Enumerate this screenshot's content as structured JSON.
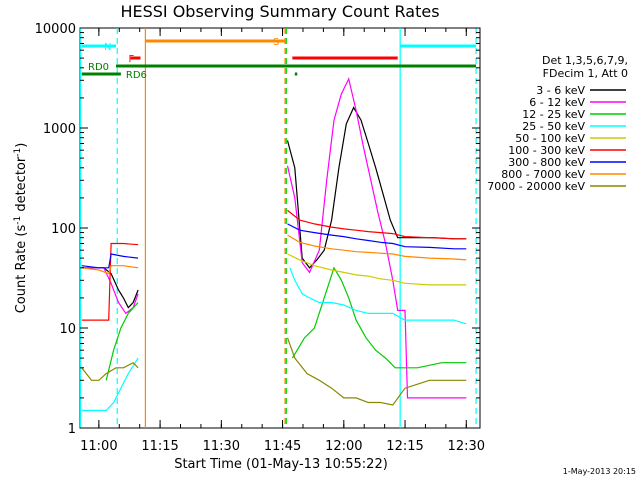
{
  "chart_data": {
    "type": "line",
    "title": "HESSI Observing Summary Count Rates",
    "xlabel": "Start Time (01-May-13 10:55:22)",
    "ylabel": "Count Rate (s",
    "ylabel_sup": "-1",
    "ylabel_mid": " detector",
    "ylabel_end": ")",
    "y_scale": "log",
    "ylim": [
      1,
      10000
    ],
    "xlim": [
      10.923,
      12.556
    ],
    "x_ticks": [
      {
        "value": 11.0,
        "label": "11:00"
      },
      {
        "value": 11.25,
        "label": "11:15"
      },
      {
        "value": 11.5,
        "label": "11:30"
      },
      {
        "value": 11.75,
        "label": "11:45"
      },
      {
        "value": 12.0,
        "label": "12:00"
      },
      {
        "value": 12.25,
        "label": "12:15"
      },
      {
        "value": 12.5,
        "label": "12:30"
      }
    ],
    "y_ticks": [
      {
        "value": 1,
        "label": "1"
      },
      {
        "value": 10,
        "label": "10"
      },
      {
        "value": 100,
        "label": "100"
      },
      {
        "value": 1000,
        "label": "1000"
      },
      {
        "value": 10000,
        "label": "10000"
      }
    ],
    "legend_header": [
      "Det 1,3,5,6,7,9,",
      "FDecim 1, Att 0"
    ],
    "legend_placement": "right",
    "timestamp": "1-May-2013 20:15",
    "series": [
      {
        "name": "3 - 6 keV",
        "color": "#000000",
        "points": [
          [
            10.93,
            40
          ],
          [
            11.02,
            40
          ],
          [
            11.05,
            35
          ],
          [
            11.08,
            24
          ],
          [
            11.1,
            20
          ],
          [
            11.12,
            16
          ],
          [
            11.14,
            18
          ],
          [
            11.16,
            24
          ],
          [
            null,
            null
          ],
          [
            11.77,
            750
          ],
          [
            11.8,
            400
          ],
          [
            11.83,
            50
          ],
          [
            11.86,
            40
          ],
          [
            11.89,
            48
          ],
          [
            11.92,
            60
          ],
          [
            11.95,
            120
          ],
          [
            11.98,
            400
          ],
          [
            12.01,
            1100
          ],
          [
            12.04,
            1600
          ],
          [
            12.07,
            1200
          ],
          [
            12.1,
            700
          ],
          [
            12.13,
            400
          ],
          [
            12.16,
            220
          ],
          [
            12.19,
            120
          ],
          [
            12.22,
            80
          ],
          [
            12.25,
            80
          ],
          [
            12.3,
            80
          ],
          [
            12.37,
            80
          ],
          [
            12.45,
            78
          ],
          [
            12.5,
            78
          ]
        ]
      },
      {
        "name": "6 - 12 keV",
        "color": "#ff00ff",
        "points": [
          [
            10.93,
            40
          ],
          [
            11.02,
            40
          ],
          [
            11.05,
            28
          ],
          [
            11.08,
            18
          ],
          [
            11.11,
            14
          ],
          [
            11.14,
            16
          ],
          [
            11.16,
            22
          ],
          [
            null,
            null
          ],
          [
            11.77,
            420
          ],
          [
            11.8,
            200
          ],
          [
            11.83,
            45
          ],
          [
            11.86,
            36
          ],
          [
            11.9,
            60
          ],
          [
            11.93,
            300
          ],
          [
            11.96,
            1200
          ],
          [
            11.99,
            2200
          ],
          [
            12.02,
            3100
          ],
          [
            12.05,
            1500
          ],
          [
            12.08,
            650
          ],
          [
            12.11,
            300
          ],
          [
            12.14,
            140
          ],
          [
            12.17,
            70
          ],
          [
            12.2,
            30
          ],
          [
            12.22,
            15
          ],
          [
            12.25,
            15
          ],
          [
            12.26,
            2
          ],
          [
            12.3,
            2
          ],
          [
            12.4,
            2
          ],
          [
            12.5,
            2
          ]
        ]
      },
      {
        "name": "12 - 25 keV",
        "color": "#00cc00",
        "points": [
          [
            11.03,
            3
          ],
          [
            11.06,
            6
          ],
          [
            11.09,
            10
          ],
          [
            11.12,
            14
          ],
          [
            11.16,
            18
          ],
          [
            null,
            null
          ],
          [
            11.79,
            5
          ],
          [
            11.84,
            8
          ],
          [
            11.88,
            10
          ],
          [
            11.92,
            20
          ],
          [
            11.96,
            40
          ],
          [
            11.99,
            30
          ],
          [
            12.02,
            20
          ],
          [
            12.05,
            12
          ],
          [
            12.09,
            8
          ],
          [
            12.13,
            6
          ],
          [
            12.17,
            5
          ],
          [
            12.21,
            4
          ],
          [
            12.25,
            4
          ],
          [
            12.3,
            4
          ],
          [
            12.4,
            4.5
          ],
          [
            12.5,
            4.5
          ]
        ]
      },
      {
        "name": "25 - 50 keV",
        "color": "#00ffff",
        "points": [
          [
            10.93,
            1.5
          ],
          [
            10.97,
            1.5
          ],
          [
            11.0,
            1.5
          ],
          [
            11.03,
            1.5
          ],
          [
            11.06,
            1.8
          ],
          [
            11.09,
            2.5
          ],
          [
            11.12,
            3.5
          ],
          [
            11.16,
            5
          ],
          [
            null,
            null
          ],
          [
            11.78,
            40
          ],
          [
            11.8,
            30
          ],
          [
            11.83,
            22
          ],
          [
            11.86,
            20
          ],
          [
            11.9,
            18
          ],
          [
            11.95,
            18
          ],
          [
            12.0,
            17
          ],
          [
            12.05,
            15
          ],
          [
            12.1,
            14
          ],
          [
            12.15,
            14
          ],
          [
            12.2,
            14
          ],
          [
            12.25,
            12
          ],
          [
            12.35,
            12
          ],
          [
            12.45,
            12
          ],
          [
            12.5,
            11
          ]
        ]
      },
      {
        "name": "50 - 100 keV",
        "color": "#cccc00",
        "points": [
          [
            11.77,
            55
          ],
          [
            11.82,
            48
          ],
          [
            11.88,
            42
          ],
          [
            11.95,
            38
          ],
          [
            12.0,
            36
          ],
          [
            12.05,
            34
          ],
          [
            12.1,
            33
          ],
          [
            12.15,
            31
          ],
          [
            12.2,
            30
          ],
          [
            12.25,
            28
          ],
          [
            12.35,
            27
          ],
          [
            12.45,
            27
          ],
          [
            12.5,
            27
          ]
        ]
      },
      {
        "name": "100 - 300 keV",
        "color": "#ff0000",
        "points": [
          [
            10.93,
            12
          ],
          [
            11.0,
            12
          ],
          [
            11.04,
            12
          ],
          [
            11.05,
            70
          ],
          [
            11.1,
            70
          ],
          [
            11.16,
            68
          ],
          [
            null,
            null
          ],
          [
            11.77,
            150
          ],
          [
            11.82,
            120
          ],
          [
            11.88,
            110
          ],
          [
            11.95,
            102
          ],
          [
            12.0,
            98
          ],
          [
            12.05,
            95
          ],
          [
            12.1,
            92
          ],
          [
            12.15,
            90
          ],
          [
            12.2,
            88
          ],
          [
            12.25,
            82
          ],
          [
            12.35,
            80
          ],
          [
            12.45,
            78
          ],
          [
            12.5,
            78
          ]
        ]
      },
      {
        "name": "300 - 800 keV",
        "color": "#0000ff",
        "points": [
          [
            10.93,
            42
          ],
          [
            11.0,
            40
          ],
          [
            11.04,
            40
          ],
          [
            11.05,
            55
          ],
          [
            11.1,
            52
          ],
          [
            11.16,
            50
          ],
          [
            null,
            null
          ],
          [
            11.77,
            110
          ],
          [
            11.82,
            95
          ],
          [
            11.88,
            90
          ],
          [
            11.95,
            85
          ],
          [
            12.0,
            82
          ],
          [
            12.05,
            78
          ],
          [
            12.1,
            75
          ],
          [
            12.15,
            72
          ],
          [
            12.2,
            70
          ],
          [
            12.25,
            65
          ],
          [
            12.35,
            64
          ],
          [
            12.45,
            62
          ],
          [
            12.5,
            62
          ]
        ]
      },
      {
        "name": "800 - 7000 keV",
        "color": "#ff8800",
        "points": [
          [
            10.93,
            40
          ],
          [
            11.0,
            38
          ],
          [
            11.04,
            35
          ],
          [
            11.05,
            42
          ],
          [
            11.1,
            42
          ],
          [
            11.16,
            40
          ],
          [
            null,
            null
          ],
          [
            11.77,
            85
          ],
          [
            11.82,
            72
          ],
          [
            11.88,
            66
          ],
          [
            11.95,
            62
          ],
          [
            12.0,
            60
          ],
          [
            12.05,
            58
          ],
          [
            12.1,
            57
          ],
          [
            12.15,
            56
          ],
          [
            12.2,
            55
          ],
          [
            12.25,
            52
          ],
          [
            12.35,
            50
          ],
          [
            12.45,
            49
          ],
          [
            12.5,
            48
          ]
        ]
      },
      {
        "name": "7000 - 20000 keV",
        "color": "#888800",
        "points": [
          [
            10.93,
            4
          ],
          [
            10.97,
            3
          ],
          [
            11.0,
            3
          ],
          [
            11.03,
            3.5
          ],
          [
            11.07,
            4
          ],
          [
            11.1,
            4
          ],
          [
            11.14,
            4.5
          ],
          [
            11.16,
            4
          ],
          [
            null,
            null
          ],
          [
            11.77,
            8
          ],
          [
            11.8,
            5
          ],
          [
            11.85,
            3.5
          ],
          [
            11.9,
            3
          ],
          [
            11.95,
            2.5
          ],
          [
            12.0,
            2
          ],
          [
            12.05,
            2
          ],
          [
            12.1,
            1.8
          ],
          [
            12.15,
            1.8
          ],
          [
            12.2,
            1.7
          ],
          [
            12.25,
            2.5
          ],
          [
            12.35,
            3
          ],
          [
            12.45,
            3
          ],
          [
            12.5,
            3
          ]
        ]
      }
    ],
    "flags": [
      {
        "label": "N",
        "color": "#00ffff",
        "segments": [
          [
            10.93,
            11.07
          ],
          [
            12.23,
            12.54
          ]
        ],
        "y": 46
      },
      {
        "label": "S",
        "color": "#ff8800",
        "segments": [
          [
            11.19,
            11.76
          ]
        ],
        "y": 41
      },
      {
        "label": "F",
        "color": "#ff0000",
        "segments": [
          [
            11.13,
            11.17
          ],
          [
            11.79,
            12.22
          ]
        ],
        "y": 58
      },
      {
        "label": "RD0",
        "color": "#008000",
        "segments": [
          [
            11.07,
            12.54
          ]
        ],
        "y": 66
      },
      {
        "label": "RD6",
        "color": "#008000",
        "segments": [
          [
            10.93,
            11.09
          ],
          [
            11.8,
            11.81
          ]
        ],
        "y": 74
      }
    ],
    "vlines": [
      {
        "x": 10.925,
        "color": "#00ffff",
        "style": "solid"
      },
      {
        "x": 11.075,
        "color": "#00ffff",
        "style": "dashed"
      },
      {
        "x": 11.19,
        "color": "#ff8800",
        "style": "solid"
      },
      {
        "x": 11.76,
        "color": "#ff8800",
        "style": "dashed"
      },
      {
        "x": 11.765,
        "color": "#00cc00",
        "style": "dashed"
      },
      {
        "x": 12.23,
        "color": "#00ffff",
        "style": "solid"
      },
      {
        "x": 12.54,
        "color": "#00ffff",
        "style": "dashed"
      }
    ],
    "grid": false
  }
}
